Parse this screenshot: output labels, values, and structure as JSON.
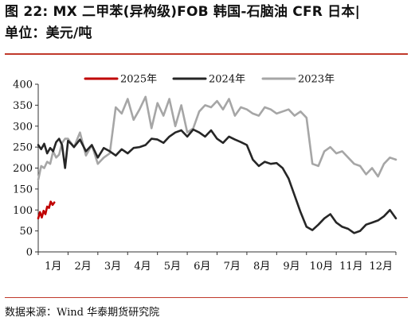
{
  "figure": {
    "title_line1": "图 22: MX 二甲苯(异构级)FOB 韩国-石脑油 CFR 日本|",
    "title_line2": "单位：美元/吨",
    "source": "数据来源：Wind  华泰期货研究院"
  },
  "colors": {
    "accent_rule": "#c0392b",
    "series_2025": "#c00000",
    "series_2024": "#262626",
    "series_2023": "#a6a6a6"
  },
  "chart_data": {
    "type": "line",
    "title": "",
    "xlabel": "",
    "ylabel": "",
    "ylim": [
      0,
      400
    ],
    "yticks": [
      "0",
      "50",
      "100",
      "150",
      "200",
      "250",
      "300",
      "350",
      "400"
    ],
    "xlim": [
      0,
      12
    ],
    "xticks": [
      "1月",
      "2月",
      "3月",
      "4月",
      "5月",
      "6月",
      "7月",
      "8月",
      "9月",
      "10月",
      "11月",
      "12月"
    ],
    "grid": false,
    "legend_position": "top",
    "series": [
      {
        "name": "2025年",
        "color": "#c00000",
        "x": [
          0.0,
          0.06,
          0.12,
          0.18,
          0.24,
          0.3,
          0.36,
          0.42,
          0.48,
          0.54
        ],
        "y": [
          80,
          95,
          82,
          98,
          90,
          108,
          105,
          120,
          112,
          118
        ]
      },
      {
        "name": "2024年",
        "color": "#262626",
        "x": [
          0.0,
          0.1,
          0.2,
          0.3,
          0.4,
          0.5,
          0.6,
          0.7,
          0.8,
          0.9,
          1.0,
          1.1,
          1.2,
          1.4,
          1.6,
          1.8,
          2.0,
          2.2,
          2.4,
          2.6,
          2.8,
          3.0,
          3.2,
          3.4,
          3.6,
          3.8,
          4.0,
          4.2,
          4.4,
          4.6,
          4.8,
          5.0,
          5.2,
          5.4,
          5.6,
          5.8,
          6.0,
          6.2,
          6.4,
          6.6,
          6.8,
          7.0,
          7.2,
          7.4,
          7.6,
          7.8,
          8.0,
          8.2,
          8.4,
          8.6,
          8.8,
          9.0,
          9.2,
          9.4,
          9.6,
          9.8,
          10.0,
          10.2,
          10.4,
          10.6,
          10.8,
          11.0,
          11.2,
          11.4,
          11.6,
          11.8,
          12.0
        ],
        "y": [
          255,
          245,
          258,
          235,
          248,
          240,
          262,
          270,
          255,
          200,
          265,
          258,
          250,
          268,
          240,
          255,
          225,
          248,
          240,
          230,
          245,
          235,
          248,
          250,
          255,
          270,
          268,
          260,
          275,
          285,
          290,
          275,
          292,
          285,
          275,
          290,
          270,
          260,
          275,
          268,
          262,
          255,
          220,
          205,
          215,
          210,
          212,
          200,
          175,
          135,
          95,
          60,
          52,
          65,
          80,
          90,
          70,
          60,
          55,
          45,
          50,
          65,
          70,
          75,
          85,
          100,
          80
        ]
      },
      {
        "name": "2023年",
        "color": "#a6a6a6",
        "x": [
          0.0,
          0.1,
          0.2,
          0.3,
          0.4,
          0.5,
          0.6,
          0.7,
          0.8,
          0.9,
          1.0,
          1.2,
          1.4,
          1.6,
          1.8,
          2.0,
          2.2,
          2.4,
          2.6,
          2.8,
          3.0,
          3.2,
          3.4,
          3.6,
          3.8,
          4.0,
          4.2,
          4.4,
          4.6,
          4.8,
          5.0,
          5.2,
          5.4,
          5.6,
          5.8,
          6.0,
          6.2,
          6.4,
          6.6,
          6.8,
          7.0,
          7.2,
          7.4,
          7.6,
          7.8,
          8.0,
          8.2,
          8.4,
          8.6,
          8.8,
          9.0,
          9.2,
          9.4,
          9.6,
          9.8,
          10.0,
          10.2,
          10.4,
          10.6,
          10.8,
          11.0,
          11.2,
          11.4,
          11.6,
          11.8,
          12.0
        ],
        "y": [
          172,
          205,
          200,
          215,
          210,
          240,
          225,
          232,
          260,
          270,
          270,
          250,
          285,
          230,
          255,
          210,
          225,
          235,
          345,
          330,
          365,
          315,
          340,
          370,
          295,
          355,
          325,
          365,
          300,
          350,
          285,
          295,
          335,
          350,
          345,
          360,
          340,
          365,
          325,
          345,
          340,
          330,
          325,
          345,
          340,
          330,
          335,
          340,
          325,
          335,
          320,
          210,
          205,
          240,
          250,
          235,
          240,
          225,
          210,
          205,
          185,
          200,
          180,
          210,
          225,
          220
        ]
      }
    ]
  }
}
